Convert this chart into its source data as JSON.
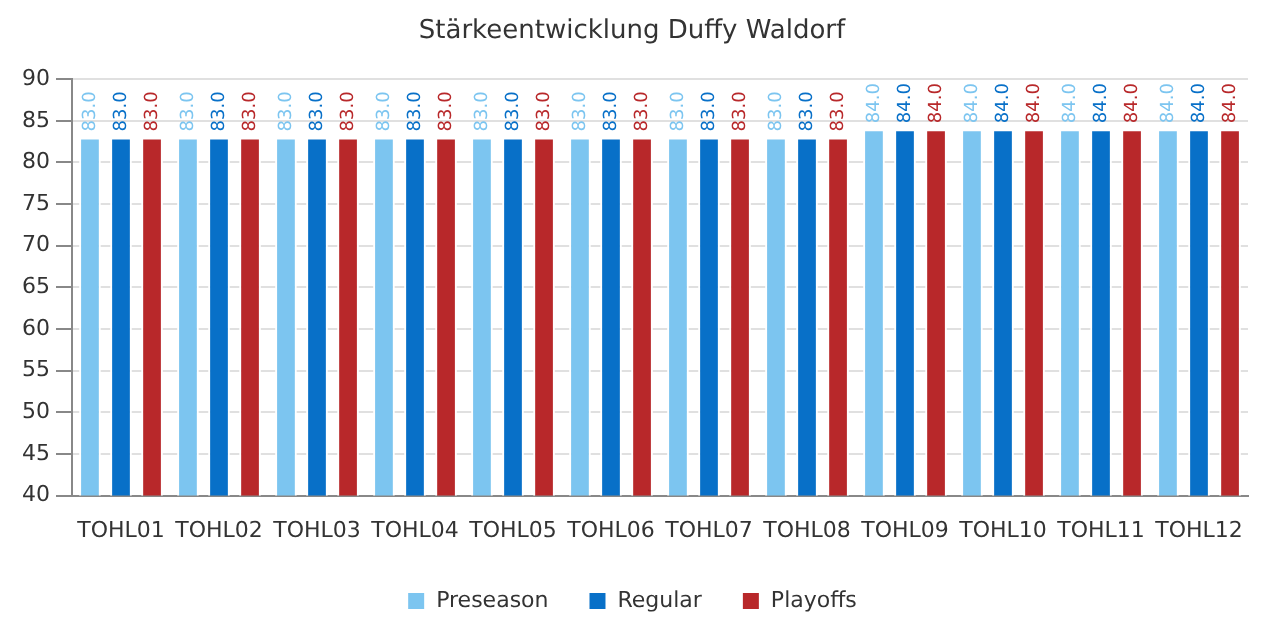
{
  "chart_data": {
    "type": "bar",
    "title": "Stärkeentwicklung Duffy Waldorf",
    "categories": [
      "TOHL01",
      "TOHL02",
      "TOHL03",
      "TOHL04",
      "TOHL05",
      "TOHL06",
      "TOHL07",
      "TOHL08",
      "TOHL09",
      "TOHL10",
      "TOHL11",
      "TOHL12"
    ],
    "series": [
      {
        "name": "Preseason",
        "color": "#7cc5f0",
        "values": [
          83,
          83,
          83,
          83,
          83,
          83,
          83,
          83,
          84,
          84,
          84,
          84
        ],
        "value_labels": [
          "83.0",
          "83.0",
          "83.0",
          "83.0",
          "83.0",
          "83.0",
          "83.0",
          "83.0",
          "84.0",
          "84.0",
          "84.0",
          "84.0"
        ]
      },
      {
        "name": "Regular",
        "color": "#0870c8",
        "values": [
          83,
          83,
          83,
          83,
          83,
          83,
          83,
          83,
          84,
          84,
          84,
          84
        ],
        "value_labels": [
          "83.0",
          "83.0",
          "83.0",
          "83.0",
          "83.0",
          "83.0",
          "83.0",
          "83.0",
          "84.0",
          "84.0",
          "84.0",
          "84.0"
        ]
      },
      {
        "name": "Playoffs",
        "color": "#b8282a",
        "values": [
          83,
          83,
          83,
          83,
          83,
          83,
          83,
          83,
          84,
          84,
          84,
          84
        ],
        "value_labels": [
          "83.0",
          "83.0",
          "83.0",
          "83.0",
          "83.0",
          "83.0",
          "83.0",
          "83.0",
          "84.0",
          "84.0",
          "84.0",
          "84.0"
        ]
      }
    ],
    "ylim": [
      40,
      90
    ],
    "yticks": [
      40,
      45,
      50,
      55,
      60,
      65,
      70,
      75,
      80,
      85,
      90
    ],
    "grid": "y",
    "legend": "bottom"
  }
}
